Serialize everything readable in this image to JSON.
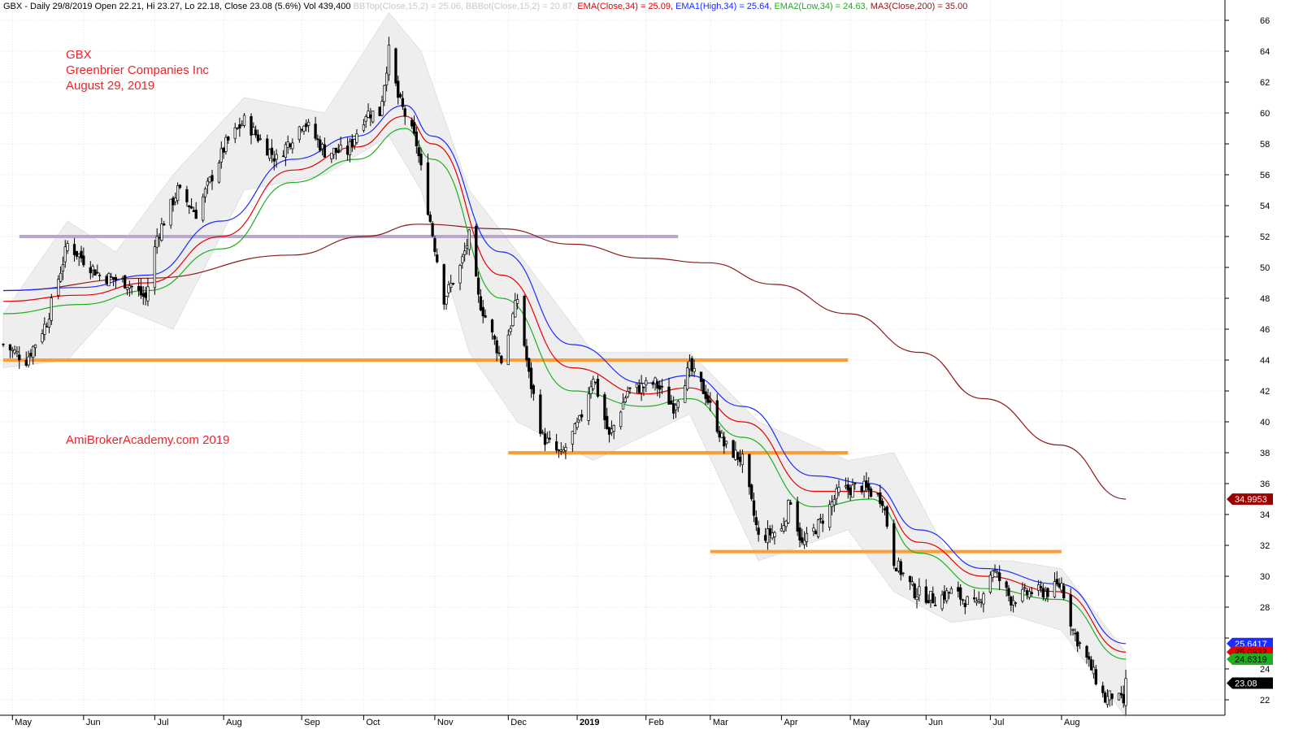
{
  "header": {
    "text": "GBX - Daily 29/8/2019 Open 22.21, Hi 23.27, Lo 22.18, Close 23.08 (5.6%) Vol 439,400",
    "bbtop": "BBTop(Close,15,2) = 25.06,",
    "bbbot": "BBBot(Close,15,2) = 20.87,",
    "ema": "EMA(Close,34) = 25.09,",
    "ema1": "EMA1(High,34) = 25.64,",
    "ema2": "EMA2(Low,34) = 24.63,",
    "ma3": "MA3(Close,200) = 35.00"
  },
  "annotations": {
    "ticker": "GBX",
    "company": "Greenbrier Companies Inc",
    "date": "August 29, 2019",
    "watermark": "AmiBrokerAcademy.com   2019"
  },
  "last_value_tags": [
    {
      "label": "34.9953",
      "bg": "#990000",
      "fg": "#ffffff",
      "value": 34.9953
    },
    {
      "label": "25.6417",
      "bg": "#1c2bff",
      "fg": "#ffffff",
      "value": 25.6417
    },
    {
      "label": "25.0932",
      "bg": "#e60000",
      "fg": "#000000",
      "value": 25.0932
    },
    {
      "label": "24.6319",
      "bg": "#1fb01f",
      "fg": "#000000",
      "value": 24.6319
    },
    {
      "label": "23.08",
      "bg": "#000000",
      "fg": "#ffffff",
      "value": 23.08
    }
  ],
  "colors": {
    "ema_high": "#1c2bff",
    "ema_close": "#e60000",
    "ema_low": "#1fb01f",
    "ma200": "#8b1a1a",
    "bollinger_fill": "#eeeeee",
    "resistance": "#ff9c33",
    "old_resistance": "#b8a8d0",
    "annotation_text": "#e8262b"
  },
  "chart_data": {
    "type": "candlestick",
    "title": "GBX - Daily",
    "y_range": [
      21,
      67
    ],
    "y_ticks": [
      22,
      24,
      26,
      28,
      30,
      32,
      34,
      36,
      38,
      40,
      42,
      44,
      46,
      48,
      50,
      52,
      54,
      56,
      58,
      60,
      62,
      64,
      66
    ],
    "y_tick_labels": [
      "22",
      "24",
      "",
      "28",
      "30",
      "32",
      "34",
      "36",
      "38",
      "40",
      "42",
      "44",
      "46",
      "48",
      "50",
      "52",
      "54",
      "56",
      "58",
      "60",
      "62",
      "64",
      "66"
    ],
    "x_period": [
      "2018-04-27",
      "2019-08-29"
    ],
    "month_labels": [
      {
        "label": "May",
        "date": "2018-05-01"
      },
      {
        "label": "Jun",
        "date": "2018-06-01"
      },
      {
        "label": "Jul",
        "date": "2018-07-02"
      },
      {
        "label": "Aug",
        "date": "2018-08-01"
      },
      {
        "label": "Sep",
        "date": "2018-09-04"
      },
      {
        "label": "Oct",
        "date": "2018-10-01"
      },
      {
        "label": "Nov",
        "date": "2018-11-01"
      },
      {
        "label": "Dec",
        "date": "2018-12-03"
      },
      {
        "label": "2019",
        "date": "2019-01-02"
      },
      {
        "label": "Feb",
        "date": "2019-02-01"
      },
      {
        "label": "Mar",
        "date": "2019-03-01"
      },
      {
        "label": "Apr",
        "date": "2019-04-01"
      },
      {
        "label": "May",
        "date": "2019-05-01"
      },
      {
        "label": "Jun",
        "date": "2019-06-03"
      },
      {
        "label": "Jul",
        "date": "2019-07-01"
      },
      {
        "label": "Aug",
        "date": "2019-08-01"
      }
    ],
    "horizontal_lines": [
      {
        "level": 52.0,
        "from": "2018-05-04",
        "to": "2019-02-15",
        "color": "#b8a8d0"
      },
      {
        "level": 44.0,
        "from": "2018-04-27",
        "to": "2019-04-30",
        "color": "#ff9c33"
      },
      {
        "level": 38.0,
        "from": "2018-12-03",
        "to": "2019-04-30",
        "color": "#ff9c33"
      },
      {
        "level": 31.6,
        "from": "2019-03-01",
        "to": "2019-08-01",
        "color": "#ff9c33"
      }
    ],
    "close_anchors": [
      {
        "date": "2018-04-27",
        "close": 45.0
      },
      {
        "date": "2018-05-07",
        "close": 44.0
      },
      {
        "date": "2018-05-16",
        "close": 46.5
      },
      {
        "date": "2018-05-25",
        "close": 51.5
      },
      {
        "date": "2018-06-08",
        "close": 49.5
      },
      {
        "date": "2018-06-20",
        "close": 49.0
      },
      {
        "date": "2018-06-28",
        "close": 48.0
      },
      {
        "date": "2018-07-03",
        "close": 52.0
      },
      {
        "date": "2018-07-12",
        "close": 55.0
      },
      {
        "date": "2018-07-20",
        "close": 53.5
      },
      {
        "date": "2018-08-02",
        "close": 58.0
      },
      {
        "date": "2018-08-10",
        "close": 59.5
      },
      {
        "date": "2018-08-24",
        "close": 57.0
      },
      {
        "date": "2018-09-05",
        "close": 59.5
      },
      {
        "date": "2018-09-14",
        "close": 57.5
      },
      {
        "date": "2018-09-24",
        "close": 57.5
      },
      {
        "date": "2018-10-02",
        "close": 60.0
      },
      {
        "date": "2018-10-08",
        "close": 60.0
      },
      {
        "date": "2018-10-12",
        "close": 64.0
      },
      {
        "date": "2018-10-16",
        "close": 61.0
      },
      {
        "date": "2018-10-24",
        "close": 58.0
      },
      {
        "date": "2018-10-30",
        "close": 53.0
      },
      {
        "date": "2018-11-05",
        "close": 48.0
      },
      {
        "date": "2018-11-12",
        "close": 50.0
      },
      {
        "date": "2018-11-16",
        "close": 52.0
      },
      {
        "date": "2018-11-20",
        "close": 48.0
      },
      {
        "date": "2018-11-30",
        "close": 44.0
      },
      {
        "date": "2018-12-07",
        "close": 48.0
      },
      {
        "date": "2018-12-12",
        "close": 43.0
      },
      {
        "date": "2018-12-18",
        "close": 39.0
      },
      {
        "date": "2018-12-26",
        "close": 37.8
      },
      {
        "date": "2019-01-03",
        "close": 40.0
      },
      {
        "date": "2019-01-09",
        "close": 43.0
      },
      {
        "date": "2019-01-16",
        "close": 39.0
      },
      {
        "date": "2019-01-24",
        "close": 42.0
      },
      {
        "date": "2019-02-05",
        "close": 42.5
      },
      {
        "date": "2019-02-13",
        "close": 41.0
      },
      {
        "date": "2019-02-20",
        "close": 43.5
      },
      {
        "date": "2019-02-27",
        "close": 41.8
      },
      {
        "date": "2019-03-07",
        "close": 38.5
      },
      {
        "date": "2019-03-15",
        "close": 37.5
      },
      {
        "date": "2019-03-22",
        "close": 32.5
      },
      {
        "date": "2019-04-01",
        "close": 33.0
      },
      {
        "date": "2019-04-05",
        "close": 35.0
      },
      {
        "date": "2019-04-10",
        "close": 32.0
      },
      {
        "date": "2019-04-18",
        "close": 33.5
      },
      {
        "date": "2019-04-26",
        "close": 35.5
      },
      {
        "date": "2019-05-06",
        "close": 35.8
      },
      {
        "date": "2019-05-15",
        "close": 35.0
      },
      {
        "date": "2019-05-20",
        "close": 31.0
      },
      {
        "date": "2019-05-29",
        "close": 29.0
      },
      {
        "date": "2019-06-07",
        "close": 28.5
      },
      {
        "date": "2019-06-14",
        "close": 29.0
      },
      {
        "date": "2019-06-25",
        "close": 28.0
      },
      {
        "date": "2019-07-02",
        "close": 30.5
      },
      {
        "date": "2019-07-10",
        "close": 28.5
      },
      {
        "date": "2019-07-19",
        "close": 29.0
      },
      {
        "date": "2019-07-26",
        "close": 29.0
      },
      {
        "date": "2019-08-01",
        "close": 29.5
      },
      {
        "date": "2019-08-06",
        "close": 26.5
      },
      {
        "date": "2019-08-14",
        "close": 24.0
      },
      {
        "date": "2019-08-20",
        "close": 22.0
      },
      {
        "date": "2019-08-23",
        "close": 22.3
      },
      {
        "date": "2019-08-28",
        "close": 21.8
      },
      {
        "date": "2019-08-29",
        "close": 23.08
      }
    ],
    "ema_high_34": [
      {
        "date": "2018-04-27",
        "v": 48.5
      },
      {
        "date": "2018-05-31",
        "v": 48.7
      },
      {
        "date": "2018-06-29",
        "v": 49.5
      },
      {
        "date": "2018-07-31",
        "v": 53.0
      },
      {
        "date": "2018-08-31",
        "v": 57.0
      },
      {
        "date": "2018-09-28",
        "v": 58.5
      },
      {
        "date": "2018-10-19",
        "v": 60.5
      },
      {
        "date": "2018-10-31",
        "v": 58.5
      },
      {
        "date": "2018-11-30",
        "v": 51.0
      },
      {
        "date": "2018-12-31",
        "v": 45.0
      },
      {
        "date": "2019-01-31",
        "v": 42.5
      },
      {
        "date": "2019-02-20",
        "v": 43.0
      },
      {
        "date": "2019-03-15",
        "v": 41.0
      },
      {
        "date": "2019-04-15",
        "v": 36.5
      },
      {
        "date": "2019-05-10",
        "v": 36.0
      },
      {
        "date": "2019-05-31",
        "v": 33.0
      },
      {
        "date": "2019-06-28",
        "v": 30.5
      },
      {
        "date": "2019-07-31",
        "v": 29.5
      },
      {
        "date": "2019-08-29",
        "v": 25.64
      }
    ],
    "ema_close_34": [
      {
        "date": "2018-04-27",
        "v": 47.8
      },
      {
        "date": "2018-05-31",
        "v": 48.2
      },
      {
        "date": "2018-06-29",
        "v": 49.0
      },
      {
        "date": "2018-07-31",
        "v": 52.0
      },
      {
        "date": "2018-08-31",
        "v": 56.3
      },
      {
        "date": "2018-09-28",
        "v": 57.8
      },
      {
        "date": "2018-10-19",
        "v": 59.8
      },
      {
        "date": "2018-10-31",
        "v": 58.0
      },
      {
        "date": "2018-11-30",
        "v": 49.5
      },
      {
        "date": "2018-12-31",
        "v": 43.5
      },
      {
        "date": "2019-01-31",
        "v": 41.8
      },
      {
        "date": "2019-02-20",
        "v": 42.2
      },
      {
        "date": "2019-03-15",
        "v": 40.0
      },
      {
        "date": "2019-04-15",
        "v": 35.5
      },
      {
        "date": "2019-05-10",
        "v": 35.5
      },
      {
        "date": "2019-05-31",
        "v": 32.2
      },
      {
        "date": "2019-06-28",
        "v": 30.0
      },
      {
        "date": "2019-07-31",
        "v": 29.0
      },
      {
        "date": "2019-08-29",
        "v": 25.09
      }
    ],
    "ema_low_34": [
      {
        "date": "2018-04-27",
        "v": 47.0
      },
      {
        "date": "2018-05-31",
        "v": 47.6
      },
      {
        "date": "2018-06-29",
        "v": 48.5
      },
      {
        "date": "2018-07-31",
        "v": 51.2
      },
      {
        "date": "2018-08-31",
        "v": 55.5
      },
      {
        "date": "2018-09-28",
        "v": 57.0
      },
      {
        "date": "2018-10-19",
        "v": 59.0
      },
      {
        "date": "2018-10-31",
        "v": 57.0
      },
      {
        "date": "2018-11-30",
        "v": 48.0
      },
      {
        "date": "2018-12-31",
        "v": 42.0
      },
      {
        "date": "2019-01-31",
        "v": 41.0
      },
      {
        "date": "2019-02-20",
        "v": 41.5
      },
      {
        "date": "2019-03-15",
        "v": 39.0
      },
      {
        "date": "2019-04-15",
        "v": 34.5
      },
      {
        "date": "2019-05-10",
        "v": 35.0
      },
      {
        "date": "2019-05-31",
        "v": 31.5
      },
      {
        "date": "2019-06-28",
        "v": 29.2
      },
      {
        "date": "2019-07-31",
        "v": 28.5
      },
      {
        "date": "2019-08-29",
        "v": 24.63
      }
    ],
    "ma_200": [
      {
        "date": "2018-04-27",
        "v": 48.5
      },
      {
        "date": "2018-06-29",
        "v": 49.3
      },
      {
        "date": "2018-08-31",
        "v": 50.8
      },
      {
        "date": "2018-10-01",
        "v": 52.0
      },
      {
        "date": "2018-10-25",
        "v": 52.8
      },
      {
        "date": "2018-11-30",
        "v": 52.5
      },
      {
        "date": "2018-12-31",
        "v": 51.5
      },
      {
        "date": "2019-01-31",
        "v": 50.6
      },
      {
        "date": "2019-02-28",
        "v": 50.3
      },
      {
        "date": "2019-03-29",
        "v": 48.9
      },
      {
        "date": "2019-04-30",
        "v": 47.0
      },
      {
        "date": "2019-05-31",
        "v": 44.5
      },
      {
        "date": "2019-06-28",
        "v": 41.5
      },
      {
        "date": "2019-07-31",
        "v": 38.5
      },
      {
        "date": "2019-08-29",
        "v": 35.0
      }
    ],
    "bollinger": {
      "top": [
        {
          "date": "2018-04-27",
          "v": 47.0
        },
        {
          "date": "2018-05-25",
          "v": 53.0
        },
        {
          "date": "2018-06-15",
          "v": 51.0
        },
        {
          "date": "2018-07-10",
          "v": 56.0
        },
        {
          "date": "2018-08-10",
          "v": 61.0
        },
        {
          "date": "2018-09-14",
          "v": 60.0
        },
        {
          "date": "2018-10-12",
          "v": 66.5
        },
        {
          "date": "2018-10-26",
          "v": 64.0
        },
        {
          "date": "2018-11-16",
          "v": 55.0
        },
        {
          "date": "2018-12-07",
          "v": 51.0
        },
        {
          "date": "2019-01-09",
          "v": 44.5
        },
        {
          "date": "2019-02-20",
          "v": 44.5
        },
        {
          "date": "2019-03-22",
          "v": 40.0
        },
        {
          "date": "2019-04-30",
          "v": 37.5
        },
        {
          "date": "2019-05-20",
          "v": 38.0
        },
        {
          "date": "2019-06-14",
          "v": 31.0
        },
        {
          "date": "2019-07-10",
          "v": 31.0
        },
        {
          "date": "2019-08-01",
          "v": 30.5
        },
        {
          "date": "2019-08-29",
          "v": 25.06
        }
      ],
      "bottom": [
        {
          "date": "2018-04-27",
          "v": 43.5
        },
        {
          "date": "2018-05-25",
          "v": 44.0
        },
        {
          "date": "2018-06-15",
          "v": 47.5
        },
        {
          "date": "2018-07-10",
          "v": 46.0
        },
        {
          "date": "2018-08-10",
          "v": 55.0
        },
        {
          "date": "2018-09-14",
          "v": 56.0
        },
        {
          "date": "2018-10-12",
          "v": 58.5
        },
        {
          "date": "2018-10-26",
          "v": 55.0
        },
        {
          "date": "2018-11-16",
          "v": 44.5
        },
        {
          "date": "2018-12-07",
          "v": 40.0
        },
        {
          "date": "2019-01-09",
          "v": 37.5
        },
        {
          "date": "2019-02-20",
          "v": 40.5
        },
        {
          "date": "2019-03-22",
          "v": 31.0
        },
        {
          "date": "2019-04-30",
          "v": 33.0
        },
        {
          "date": "2019-05-20",
          "v": 29.0
        },
        {
          "date": "2019-06-14",
          "v": 27.0
        },
        {
          "date": "2019-07-10",
          "v": 27.5
        },
        {
          "date": "2019-08-01",
          "v": 26.5
        },
        {
          "date": "2019-08-29",
          "v": 20.87
        }
      ]
    }
  }
}
